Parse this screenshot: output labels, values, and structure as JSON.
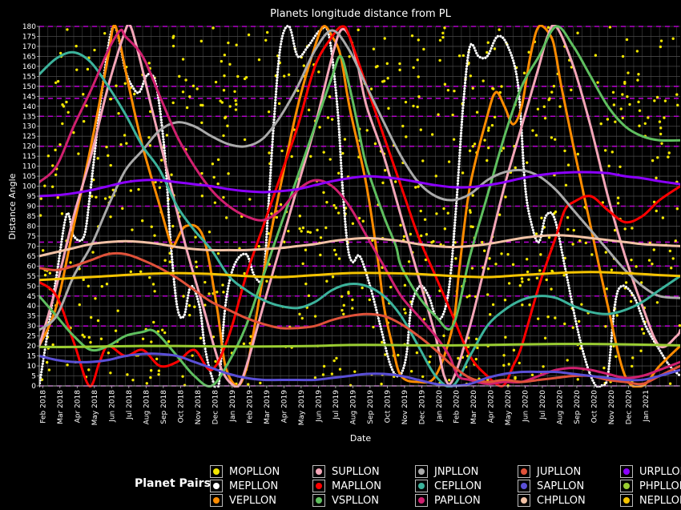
{
  "chart_data": {
    "type": "line",
    "title": "Planets longitude distance from PL",
    "xlabel": "Date",
    "ylabel": "Distance Angle",
    "ylim": [
      0,
      180
    ],
    "yticks": [
      0,
      5,
      10,
      15,
      20,
      25,
      30,
      35,
      40,
      45,
      50,
      55,
      60,
      65,
      70,
      75,
      80,
      85,
      90,
      95,
      100,
      105,
      110,
      115,
      120,
      125,
      130,
      135,
      140,
      145,
      150,
      155,
      160,
      165,
      170,
      175,
      180
    ],
    "xlim": [
      0,
      37.2
    ],
    "xtick_labels": [
      "Feb 2018",
      "Mar 2018",
      "Apr 2018",
      "May 2018",
      "Jun 2018",
      "Jul 2018",
      "Aug 2018",
      "Sep 2018",
      "Oct 2018",
      "Nov 2018",
      "Dec 2018",
      "Jan 2019",
      "Feb 2019",
      "Mar 2019",
      "Apr 2019",
      "May 2019",
      "Jun 2019",
      "Jul 2019",
      "Aug 2019",
      "Sep 2019",
      "Oct 2019",
      "Nov 2019",
      "Dec 2019",
      "Jan 2020",
      "Feb 2020",
      "Mar 2020",
      "Apr 2020",
      "May 2020",
      "Jun 2020",
      "Jul 2020",
      "Aug 2020",
      "Sep 2020",
      "Oct 2020",
      "Nov 2020",
      "Dec 2020",
      "Jan 2021"
    ],
    "aspect_lines": [
      0,
      30,
      45,
      60,
      72,
      90,
      120,
      135,
      144,
      150,
      180
    ],
    "legend_title": "Planet Pairs",
    "series": [
      {
        "name": "MOPLLON",
        "color": "#f2e600",
        "style": "scatter_moon"
      },
      {
        "name": "MEPLLON",
        "color": "#ffffff",
        "style": "dotted",
        "x": [
          0,
          1,
          1.6,
          2,
          2.6,
          3,
          3.6,
          4.3,
          5,
          5.4,
          5.8,
          6.3,
          6.8,
          7.3,
          7.6,
          8,
          8.4,
          8.8,
          9.3,
          9.6,
          10,
          10.4,
          10.8,
          11.3,
          12,
          12.5,
          13,
          13.3,
          13.6,
          14,
          14.5,
          15,
          15.6,
          16.3,
          16.8,
          17.3,
          17.6,
          17.9,
          18.2,
          18.6,
          19.2,
          19.8,
          20.4,
          20.9,
          21.3,
          21.6,
          22.1,
          22.6,
          23,
          23.4,
          23.8,
          24.2,
          24.6,
          25,
          25.5,
          26,
          26.6,
          27.2,
          27.8,
          28.2,
          28.6,
          29,
          29.4,
          29.9,
          30.5,
          31.2,
          31.8,
          32.3,
          32.6,
          33,
          33.4,
          33.8,
          34.5,
          35.2,
          36,
          36.6,
          37.2
        ],
        "y": [
          0,
          55,
          86,
          75,
          75,
          100,
          145,
          180,
          158,
          150,
          147,
          156,
          150,
          115,
          75,
          40,
          35,
          50,
          40,
          20,
          5,
          0,
          40,
          60,
          66,
          55,
          55,
          90,
          130,
          170,
          180,
          165,
          170,
          178,
          176,
          140,
          100,
          70,
          62,
          65,
          50,
          30,
          10,
          5,
          15,
          40,
          50,
          45,
          35,
          35,
          50,
          90,
          140,
          170,
          165,
          165,
          175,
          170,
          150,
          100,
          80,
          72,
          85,
          84,
          60,
          30,
          10,
          0,
          0,
          5,
          40,
          50,
          45,
          30,
          18,
          10,
          5
        ]
      },
      {
        "name": "VEPLLON",
        "color": "#ff8c00",
        "x": [
          0,
          1,
          2,
          3,
          4,
          4.3,
          4.6,
          5.2,
          6,
          7,
          7.6,
          7.8,
          8.5,
          9.5,
          10.3,
          10.8,
          11.5,
          12,
          12.3,
          12.7,
          13.3,
          14,
          15,
          16,
          16.5,
          17,
          17.5,
          18,
          19,
          19.7,
          20,
          20.5,
          21,
          22,
          23,
          24,
          24.4,
          25,
          26,
          26.5,
          27,
          27.5,
          28,
          28.5,
          29,
          29.7,
          30,
          30.3,
          31,
          32,
          33,
          34,
          35,
          36,
          37.2
        ],
        "y": [
          20,
          40,
          80,
          120,
          165,
          180,
          175,
          150,
          120,
          90,
          72,
          70,
          80,
          75,
          40,
          10,
          0,
          8,
          20,
          40,
          70,
          100,
          140,
          170,
          180,
          175,
          165,
          140,
          100,
          60,
          40,
          20,
          5,
          2,
          5,
          30,
          60,
          100,
          135,
          147,
          140,
          131,
          140,
          165,
          180,
          175,
          165,
          150,
          120,
          80,
          40,
          5,
          0,
          10,
          20
        ]
      },
      {
        "name": "SUPLLON",
        "color": "#f4a6b8",
        "x": [
          0,
          1,
          2,
          3,
          4,
          5,
          5.3,
          5.8,
          6.5,
          7.5,
          8.5,
          9.5,
          10.5,
          11.3,
          11.7,
          12.2,
          13,
          14,
          15,
          16,
          17,
          17.5,
          18,
          18.5,
          19,
          20,
          21,
          22,
          23,
          23.5,
          24,
          25,
          26,
          27,
          28,
          29,
          29.5,
          30,
          31,
          32,
          33,
          34,
          35,
          36,
          37,
          37.2
        ],
        "y": [
          20,
          50,
          85,
          115,
          150,
          178,
          180,
          165,
          140,
          105,
          70,
          40,
          10,
          0,
          2,
          15,
          40,
          70,
          100,
          130,
          165,
          178,
          175,
          160,
          140,
          115,
          85,
          55,
          25,
          5,
          3,
          30,
          65,
          100,
          130,
          160,
          175,
          180,
          160,
          130,
          95,
          65,
          40,
          20,
          25,
          28
        ]
      },
      {
        "name": "MAPLLON",
        "color": "#ff0000",
        "x": [
          0,
          1,
          2,
          2.9,
          3.5,
          4,
          5,
          6,
          7,
          8,
          9,
          10,
          11,
          12,
          13,
          14,
          15,
          16,
          17,
          17.6,
          18,
          19,
          20,
          21,
          22,
          23,
          24,
          25,
          26,
          26.9,
          27.5,
          28,
          29,
          30,
          30.5,
          31,
          32,
          33,
          34,
          35,
          36,
          37.2
        ],
        "y": [
          52,
          45,
          22,
          0,
          12,
          20,
          15,
          18,
          10,
          12,
          18,
          8,
          25,
          55,
          80,
          105,
          130,
          160,
          175,
          180,
          175,
          150,
          125,
          100,
          75,
          55,
          35,
          15,
          5,
          0,
          10,
          20,
          50,
          75,
          88,
          92,
          95,
          88,
          82,
          85,
          93,
          100
        ]
      },
      {
        "name": "VSPLLON",
        "color": "#5fbf5f",
        "x": [
          0,
          1,
          2,
          3,
          4,
          5,
          6,
          6.5,
          7,
          8,
          9,
          10,
          11,
          12,
          13,
          14,
          15,
          16,
          17,
          17.5,
          18,
          18.5,
          19,
          20,
          20.7,
          21,
          22,
          23,
          24,
          25,
          26,
          27,
          28,
          29,
          30,
          31,
          32,
          33,
          34,
          35,
          36,
          37.2
        ],
        "y": [
          45,
          35,
          25,
          18,
          20,
          25,
          27,
          28,
          25,
          15,
          5,
          0,
          12,
          30,
          55,
          80,
          105,
          130,
          155,
          165,
          150,
          130,
          110,
          85,
          70,
          60,
          45,
          35,
          30,
          65,
          95,
          125,
          150,
          165,
          180,
          170,
          155,
          140,
          130,
          125,
          123,
          123
        ]
      },
      {
        "name": "JNPLLON",
        "color": "#aaaaaa",
        "x": [
          0,
          1,
          2,
          3,
          4,
          5,
          6,
          7,
          8,
          9,
          10,
          11,
          12,
          13,
          14,
          15,
          16,
          17,
          18,
          19,
          20,
          21,
          22,
          23,
          24,
          25,
          26,
          27,
          28,
          29,
          30,
          31,
          32,
          33,
          34,
          35,
          36,
          37.2
        ],
        "y": [
          28,
          35,
          55,
          70,
          90,
          108,
          118,
          128,
          132,
          130,
          125,
          121,
          120,
          124,
          135,
          150,
          168,
          178,
          168,
          150,
          132,
          115,
          102,
          95,
          93,
          96,
          103,
          107,
          108,
          105,
          98,
          88,
          78,
          68,
          58,
          50,
          45,
          44
        ]
      },
      {
        "name": "CEPLLON",
        "color": "#3cb39c",
        "x": [
          0,
          1,
          2,
          3,
          4,
          5,
          6,
          7,
          8,
          9,
          10,
          11,
          12,
          13,
          14,
          15,
          16,
          17,
          18,
          19,
          20,
          21,
          22,
          23,
          24,
          25,
          26,
          27,
          28,
          29,
          30,
          31,
          32,
          33,
          34,
          35,
          36,
          37.2
        ],
        "y": [
          156,
          164,
          167,
          162,
          150,
          136,
          120,
          108,
          90,
          78,
          68,
          55,
          48,
          43,
          40,
          39,
          42,
          48,
          51,
          50,
          45,
          35,
          20,
          5,
          0,
          15,
          30,
          38,
          43,
          45,
          44,
          40,
          37,
          36,
          38,
          42,
          48,
          55
        ]
      },
      {
        "name": "PAPLLON",
        "color": "#d0206f",
        "x": [
          0,
          1,
          2,
          3,
          4,
          4.7,
          5,
          6,
          7,
          8,
          9,
          10,
          11,
          12,
          13,
          14,
          15,
          16,
          17,
          18,
          19,
          20,
          21,
          22,
          23,
          23.8,
          24.3,
          25,
          26,
          27,
          28,
          29,
          30,
          31,
          32,
          33,
          34,
          35,
          36,
          37.2
        ],
        "y": [
          102,
          110,
          130,
          148,
          168,
          178,
          175,
          165,
          145,
          125,
          110,
          98,
          90,
          85,
          83,
          88,
          98,
          103,
          100,
          90,
          75,
          60,
          45,
          35,
          25,
          15,
          5,
          3,
          1,
          2,
          2,
          5,
          8,
          9,
          8,
          6,
          4,
          5,
          8,
          12
        ]
      },
      {
        "name": "JUPLLON",
        "color": "#e0523a",
        "x": [
          0,
          1,
          2,
          3,
          4,
          5,
          6,
          7,
          8,
          9,
          10,
          11,
          12,
          13,
          14,
          15,
          16,
          17,
          18,
          19,
          20,
          21,
          22,
          23,
          24,
          25,
          26,
          27,
          28,
          29,
          30,
          31,
          32,
          33,
          34,
          35,
          36,
          37.2
        ],
        "y": [
          59,
          58,
          60,
          63,
          66,
          66,
          63,
          59,
          54,
          48,
          42,
          38,
          34,
          31,
          29,
          29,
          30,
          33,
          35,
          36,
          35,
          31,
          25,
          18,
          10,
          4,
          2,
          3,
          2,
          3,
          4,
          5,
          5,
          3,
          2,
          1,
          5,
          10
        ]
      },
      {
        "name": "SAPLLON",
        "color": "#5a4fd6",
        "x": [
          0,
          1,
          2,
          3,
          4,
          5,
          6,
          7,
          8,
          9,
          10,
          11,
          12,
          13,
          14,
          15,
          16,
          17,
          18,
          19,
          20,
          21,
          22,
          23,
          24,
          25,
          26,
          27,
          28,
          29,
          30,
          31,
          32,
          33,
          34,
          35,
          36,
          37.2
        ],
        "y": [
          15,
          13,
          12,
          12,
          13,
          15,
          16,
          16,
          15,
          12,
          9,
          6,
          4,
          3,
          3,
          3,
          3,
          4,
          5,
          6,
          6,
          5,
          3,
          1,
          0,
          1,
          4,
          6,
          7,
          7,
          7,
          6,
          5,
          4,
          3,
          3,
          5,
          8
        ]
      },
      {
        "name": "CHPLLON",
        "color": "#f2c2a6",
        "x": [
          0,
          1,
          2,
          3,
          4,
          5,
          6,
          7,
          8,
          9,
          10,
          11,
          12,
          13,
          14,
          15,
          16,
          17,
          18,
          19,
          20,
          21,
          22,
          23,
          24,
          25,
          26,
          27,
          28,
          29,
          30,
          31,
          32,
          33,
          34,
          35,
          36,
          37.2
        ],
        "y": [
          65,
          67,
          69,
          71,
          72,
          72.5,
          72,
          71,
          69.5,
          68.5,
          68,
          68,
          68,
          68.5,
          69,
          70,
          71,
          72.5,
          73.5,
          74,
          73.5,
          72.5,
          71,
          70,
          69.5,
          70,
          71,
          72.5,
          74,
          75,
          75.5,
          75,
          74,
          73,
          72,
          71,
          70.5,
          70
        ]
      },
      {
        "name": "URPLLON",
        "color": "#8b00ff",
        "x": [
          0,
          1,
          2,
          3,
          4,
          5,
          6,
          7,
          8,
          9,
          10,
          11,
          12,
          13,
          14,
          15,
          16,
          17,
          18,
          19,
          20,
          21,
          22,
          23,
          24,
          25,
          26,
          27,
          28,
          29,
          30,
          31,
          32,
          33,
          34,
          35,
          36,
          37.2
        ],
        "y": [
          95,
          95.5,
          96.5,
          98,
          100,
          102,
          103,
          103,
          102,
          101,
          100,
          98.5,
          97.5,
          97,
          97.5,
          98.5,
          100.5,
          102.5,
          104,
          105,
          104.5,
          103.5,
          102,
          100.5,
          99.5,
          99.5,
          100.5,
          102,
          104,
          105.5,
          106.5,
          107,
          107,
          106.5,
          105,
          104,
          102.5,
          101
        ]
      },
      {
        "name": "PHPLLON",
        "color": "#9acd32",
        "x": [
          0,
          2,
          4,
          6,
          8,
          10,
          12,
          14,
          16,
          18,
          20,
          22,
          24,
          26,
          28,
          30,
          32,
          34,
          36,
          37.2
        ],
        "y": [
          19.5,
          19.5,
          19.8,
          20,
          20,
          19.8,
          19.7,
          19.8,
          20,
          20.5,
          20.5,
          20.3,
          20.3,
          20.5,
          20.8,
          21,
          21,
          20.8,
          20.5,
          20.3
        ]
      },
      {
        "name": "NEPLLON",
        "color": "#f5c400",
        "x": [
          0,
          2,
          4,
          6,
          8,
          10,
          12,
          14,
          16,
          18,
          20,
          22,
          24,
          26,
          28,
          30,
          32,
          34,
          36,
          37.2
        ],
        "y": [
          53,
          54,
          55,
          56,
          56.5,
          56,
          55,
          54.5,
          55.5,
          56.5,
          56.5,
          56,
          55,
          54.5,
          55.5,
          56.5,
          57,
          56.5,
          55.5,
          55
        ]
      }
    ]
  }
}
